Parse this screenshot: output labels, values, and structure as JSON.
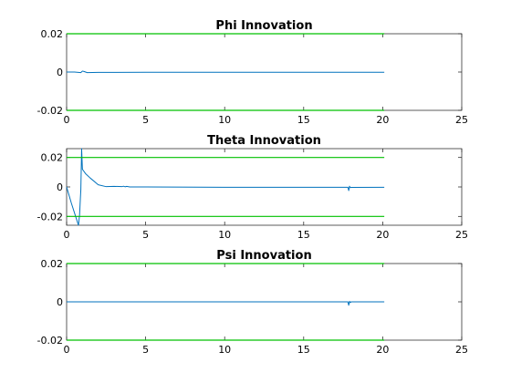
{
  "chart_data": [
    {
      "type": "line",
      "title": "Phi Innovation",
      "xlim": [
        0,
        25
      ],
      "ylim": [
        -0.02,
        0.02
      ],
      "xticks": [
        0,
        5,
        10,
        15,
        20,
        25
      ],
      "xtick_labels": [
        "0",
        "5",
        "10",
        "15",
        "20",
        "25"
      ],
      "yticks": [
        -0.02,
        0,
        0.02
      ],
      "ytick_labels": [
        "-0.02",
        "0",
        "0.02"
      ],
      "grid": false,
      "series": [
        {
          "role": "innovation",
          "color": "#0072bd",
          "x": [
            0,
            0.5,
            0.9,
            1.0,
            1.1,
            1.3,
            2,
            5,
            10,
            15,
            20.1
          ],
          "y": [
            0,
            0,
            -0.0003,
            0.0005,
            0.0003,
            -0.0003,
            -0.0002,
            -0.0001,
            -0.0001,
            -0.0001,
            -0.0001
          ]
        },
        {
          "role": "upper-bound",
          "color": "#00c000",
          "x": [
            0,
            20.1
          ],
          "y": [
            0.02,
            0.02
          ]
        },
        {
          "role": "lower-bound",
          "color": "#00c000",
          "x": [
            0,
            20.1
          ],
          "y": [
            -0.02,
            -0.02
          ]
        }
      ]
    },
    {
      "type": "line",
      "title": "Theta Innovation",
      "xlim": [
        0,
        25
      ],
      "ylim": [
        -0.026,
        0.026
      ],
      "xticks": [
        0,
        5,
        10,
        15,
        20,
        25
      ],
      "xtick_labels": [
        "0",
        "5",
        "10",
        "15",
        "20",
        "25"
      ],
      "yticks": [
        -0.02,
        0,
        0.02
      ],
      "ytick_labels": [
        "-0.02",
        "0",
        "0.02"
      ],
      "grid": false,
      "series": [
        {
          "role": "innovation",
          "color": "#0072bd",
          "x": [
            0,
            0.3,
            0.6,
            0.75,
            0.82,
            0.87,
            0.9,
            0.95,
            1.0,
            1.2,
            1.5,
            2.0,
            2.5,
            3.0,
            3.5,
            3.6,
            3.7,
            3.8,
            4.0,
            5,
            10,
            15,
            17.8,
            17.85,
            17.9,
            17.95,
            18.0,
            20.1
          ],
          "y": [
            0,
            -0.011,
            -0.021,
            -0.026,
            -0.019,
            -0.008,
            -0.002,
            0.026,
            0.012,
            0.009,
            0.006,
            0.0015,
            0.0002,
            0.0004,
            0.0002,
            0.0005,
            0.0001,
            0.0004,
            0,
            0,
            -0.0002,
            -0.0002,
            -0.0002,
            -0.0025,
            0.0005,
            -0.0005,
            -0.0003,
            -0.0002
          ]
        },
        {
          "role": "upper-bound",
          "color": "#00c000",
          "x": [
            0,
            20.1
          ],
          "y": [
            0.02,
            0.02
          ]
        },
        {
          "role": "lower-bound",
          "color": "#00c000",
          "x": [
            0,
            20.1
          ],
          "y": [
            -0.02,
            -0.02
          ]
        }
      ]
    },
    {
      "type": "line",
      "title": "Psi Innovation",
      "xlim": [
        0,
        25
      ],
      "ylim": [
        -0.02,
        0.02
      ],
      "xticks": [
        0,
        5,
        10,
        15,
        20,
        25
      ],
      "xtick_labels": [
        "0",
        "5",
        "10",
        "15",
        "20",
        "25"
      ],
      "yticks": [
        -0.02,
        0,
        0.02
      ],
      "ytick_labels": [
        "-0.02",
        "0",
        "0.02"
      ],
      "grid": false,
      "series": [
        {
          "role": "innovation",
          "color": "#0072bd",
          "x": [
            0,
            5,
            10,
            15,
            17.8,
            17.85,
            17.9,
            17.95,
            18.0,
            20.1
          ],
          "y": [
            0,
            0,
            0,
            0,
            0,
            -0.0018,
            0.0003,
            -0.0004,
            0,
            0
          ]
        },
        {
          "role": "upper-bound",
          "color": "#00c000",
          "x": [
            0,
            20.1
          ],
          "y": [
            0.02,
            0.02
          ]
        },
        {
          "role": "lower-bound",
          "color": "#00c000",
          "x": [
            0,
            20.1
          ],
          "y": [
            -0.02,
            -0.02
          ]
        }
      ]
    }
  ]
}
